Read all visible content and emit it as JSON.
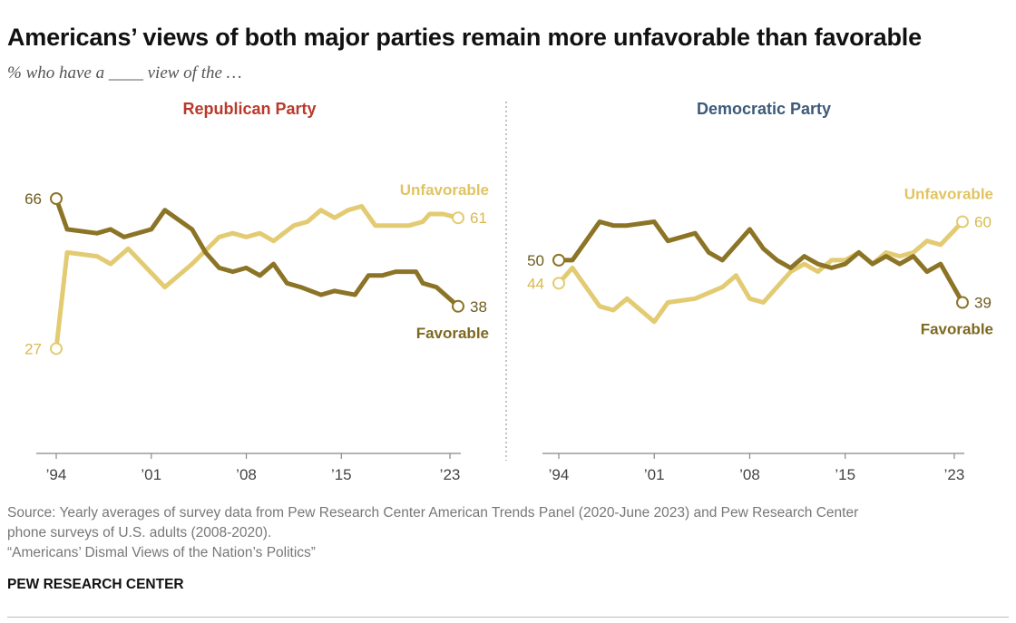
{
  "title": "Americans’ views of both major parties remain more unfavorable than favorable",
  "subtitle": "% who have a ____ view of the …",
  "source_lines": [
    "Source: Yearly averages of survey data from Pew Research Center American Trends Panel (2020-June 2023) and Pew Research Center",
    "phone surveys of U.S. adults (2008-2020).",
    "“Americans’ Dismal Views of the Nation’s Politics”"
  ],
  "brand": "PEW RESEARCH CENTER",
  "colors": {
    "favorable": "#8c7426",
    "unfavorable": "#e3cb73",
    "republican": "#b83a2b",
    "democratic": "#3c5a78",
    "axis": "#888888",
    "divider": "#999999"
  },
  "chart_data": [
    {
      "type": "line",
      "title": "Republican Party",
      "x_ticks": [
        1994,
        2001,
        2008,
        2015,
        2023
      ],
      "x_tick_labels": [
        "’94",
        "’01",
        "’08",
        "’15",
        "’23"
      ],
      "xlim": [
        1994,
        2023.6
      ],
      "ylim": [
        0,
        80
      ],
      "grid": false,
      "series": [
        {
          "name": "Unfavorable",
          "color": "#e3cb73",
          "end_label": "61",
          "start_label": "27",
          "points": [
            [
              1994.0,
              27
            ],
            [
              1994.8,
              52
            ],
            [
              1997.0,
              51
            ],
            [
              1998.0,
              49
            ],
            [
              1999.3,
              53
            ],
            [
              2002.0,
              43
            ],
            [
              2004.0,
              49
            ],
            [
              2006.0,
              56
            ],
            [
              2007.0,
              57
            ],
            [
              2008.0,
              56
            ],
            [
              2009.0,
              57
            ],
            [
              2010.0,
              55
            ],
            [
              2011.5,
              59
            ],
            [
              2012.5,
              60
            ],
            [
              2013.5,
              63
            ],
            [
              2014.5,
              61
            ],
            [
              2015.5,
              63
            ],
            [
              2016.5,
              64
            ],
            [
              2017.5,
              59
            ],
            [
              2018.5,
              59
            ],
            [
              2020.0,
              59
            ],
            [
              2021.0,
              60
            ],
            [
              2021.5,
              62
            ],
            [
              2022.5,
              62
            ],
            [
              2023.6,
              61
            ]
          ]
        },
        {
          "name": "Favorable",
          "color": "#8c7426",
          "end_label": "38",
          "start_label": "66",
          "points": [
            [
              1994.0,
              66
            ],
            [
              1994.8,
              58
            ],
            [
              1997.0,
              57
            ],
            [
              1998.0,
              58
            ],
            [
              1999.0,
              56
            ],
            [
              2001.0,
              58
            ],
            [
              2002.0,
              63
            ],
            [
              2004.0,
              58
            ],
            [
              2005.0,
              52
            ],
            [
              2006.0,
              48
            ],
            [
              2007.0,
              47
            ],
            [
              2008.0,
              48
            ],
            [
              2009.0,
              46
            ],
            [
              2010.0,
              49
            ],
            [
              2011.0,
              44
            ],
            [
              2012.0,
              43
            ],
            [
              2013.5,
              41
            ],
            [
              2014.5,
              42
            ],
            [
              2016.0,
              41
            ],
            [
              2017.0,
              46
            ],
            [
              2018.0,
              46
            ],
            [
              2019.0,
              47
            ],
            [
              2020.5,
              47
            ],
            [
              2021.0,
              44
            ],
            [
              2022.0,
              43
            ],
            [
              2023.6,
              38
            ]
          ]
        }
      ]
    },
    {
      "type": "line",
      "title": "Democratic Party",
      "x_ticks": [
        1994,
        2001,
        2008,
        2015,
        2023
      ],
      "x_tick_labels": [
        "’94",
        "’01",
        "’08",
        "’15",
        "’23"
      ],
      "xlim": [
        1994,
        2023.6
      ],
      "ylim": [
        0,
        80
      ],
      "grid": false,
      "series": [
        {
          "name": "Unfavorable",
          "color": "#e3cb73",
          "end_label": "60",
          "start_label": "44",
          "points": [
            [
              1994.0,
              44
            ],
            [
              1995.0,
              48
            ],
            [
              1997.0,
              38
            ],
            [
              1998.0,
              37
            ],
            [
              1999.0,
              40
            ],
            [
              2001.0,
              34
            ],
            [
              2002.0,
              39
            ],
            [
              2004.0,
              40
            ],
            [
              2006.0,
              43
            ],
            [
              2007.0,
              46
            ],
            [
              2008.0,
              40
            ],
            [
              2009.0,
              39
            ],
            [
              2010.0,
              43
            ],
            [
              2011.0,
              47
            ],
            [
              2012.0,
              49
            ],
            [
              2013.0,
              47
            ],
            [
              2014.0,
              50
            ],
            [
              2015.0,
              50
            ],
            [
              2016.0,
              52
            ],
            [
              2017.0,
              49
            ],
            [
              2018.0,
              52
            ],
            [
              2019.0,
              51
            ],
            [
              2020.0,
              52
            ],
            [
              2021.0,
              55
            ],
            [
              2022.0,
              54
            ],
            [
              2023.6,
              60
            ]
          ]
        },
        {
          "name": "Favorable",
          "color": "#8c7426",
          "end_label": "39",
          "start_label": "50",
          "points": [
            [
              1994.0,
              50
            ],
            [
              1995.0,
              50
            ],
            [
              1997.0,
              60
            ],
            [
              1998.0,
              59
            ],
            [
              1999.0,
              59
            ],
            [
              2001.0,
              60
            ],
            [
              2002.0,
              55
            ],
            [
              2004.0,
              57
            ],
            [
              2005.0,
              52
            ],
            [
              2006.0,
              50
            ],
            [
              2008.0,
              58
            ],
            [
              2009.0,
              53
            ],
            [
              2010.0,
              50
            ],
            [
              2011.0,
              48
            ],
            [
              2012.0,
              51
            ],
            [
              2013.0,
              49
            ],
            [
              2014.0,
              48
            ],
            [
              2015.0,
              49
            ],
            [
              2016.0,
              52
            ],
            [
              2017.0,
              49
            ],
            [
              2018.0,
              51
            ],
            [
              2019.0,
              49
            ],
            [
              2020.0,
              51
            ],
            [
              2021.0,
              47
            ],
            [
              2022.0,
              49
            ],
            [
              2023.6,
              39
            ]
          ]
        }
      ]
    }
  ]
}
